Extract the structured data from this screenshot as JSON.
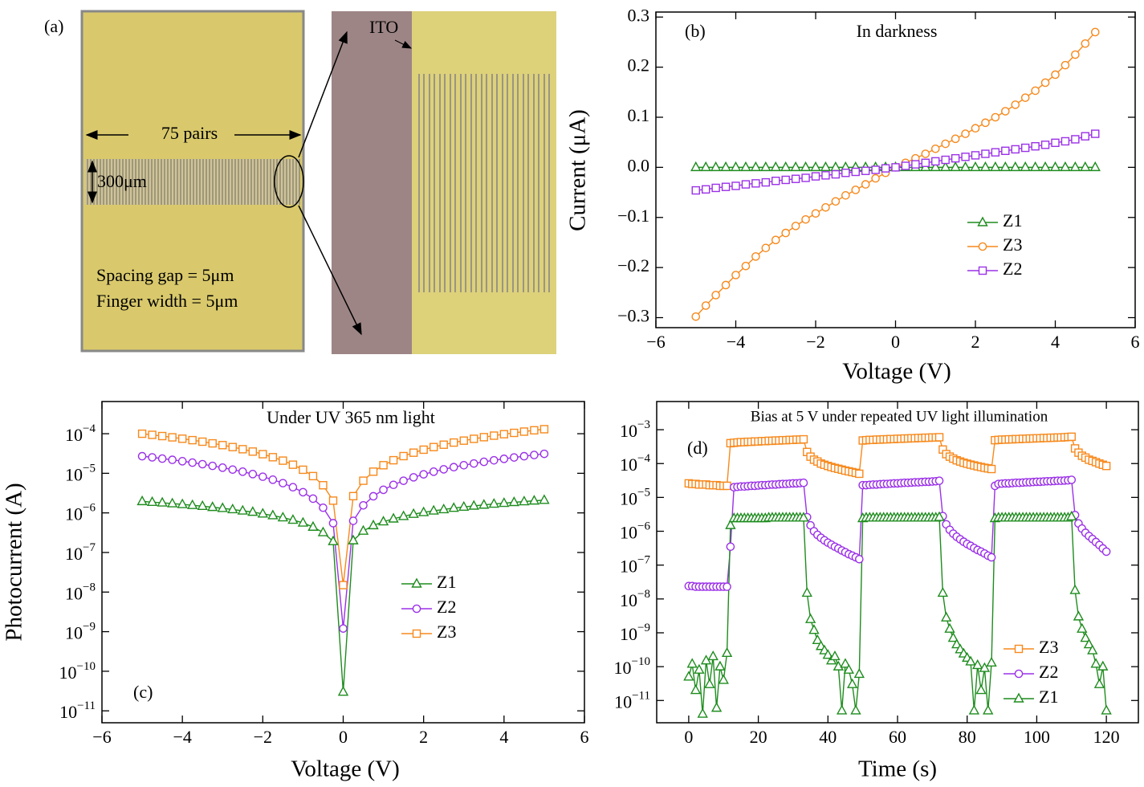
{
  "panel_a": {
    "label": "(a)",
    "pairs": "75 pairs",
    "width": "300μm",
    "gap": "Spacing gap = 5μm",
    "finger": "Finger width = 5μm",
    "ito": "ITO"
  },
  "chart_data": [
    {
      "type": "line",
      "panel_label": "(b)",
      "title": "In darkness",
      "xlabel": "Voltage (V)",
      "ylabel": "Current (μA)",
      "xlim": [
        -6,
        6
      ],
      "ylim": [
        -0.32,
        0.31
      ],
      "xticks": [
        {
          "value": -6,
          "label": "−6"
        },
        {
          "value": -4,
          "label": "−4"
        },
        {
          "value": -2,
          "label": "−2"
        },
        0,
        2,
        4,
        6
      ],
      "yticks": [
        {
          "value": -0.3,
          "label": "−0.3"
        },
        {
          "value": -0.2,
          "label": "−0.2"
        },
        {
          "value": -0.1,
          "label": "−0.1"
        },
        {
          "value": 0,
          "label": "0.0"
        },
        0.1,
        0.2,
        0.3
      ],
      "x": [
        -5,
        -4.75,
        -4.5,
        -4.25,
        -4,
        -3.75,
        -3.5,
        -3.25,
        -3,
        -2.75,
        -2.5,
        -2.25,
        -2,
        -1.75,
        -1.5,
        -1.25,
        -1,
        -0.75,
        -0.5,
        -0.25,
        0,
        0.25,
        0.5,
        0.75,
        1,
        1.25,
        1.5,
        1.75,
        2,
        2.25,
        2.5,
        2.75,
        3,
        3.25,
        3.5,
        3.75,
        4,
        4.25,
        4.5,
        4.75,
        5
      ],
      "series": [
        {
          "name": "Z1",
          "color": "#1e8c1e",
          "marker": "triangle",
          "values": [
            0,
            0,
            0,
            0,
            0,
            0,
            0,
            0,
            0,
            0,
            0,
            0,
            0,
            0,
            0,
            0,
            0,
            0,
            0,
            0,
            0,
            0,
            0,
            0,
            0,
            0,
            0,
            0,
            0,
            0,
            0,
            0,
            0,
            0,
            0,
            0,
            0,
            0,
            0,
            0,
            0
          ]
        },
        {
          "name": "Z3",
          "color": "#f7891c",
          "marker": "circle",
          "values": [
            -0.298,
            -0.276,
            -0.255,
            -0.235,
            -0.215,
            -0.197,
            -0.178,
            -0.161,
            -0.145,
            -0.131,
            -0.117,
            -0.104,
            -0.092,
            -0.08,
            -0.068,
            -0.056,
            -0.045,
            -0.034,
            -0.022,
            -0.011,
            0,
            0.009,
            0.018,
            0.027,
            0.037,
            0.047,
            0.057,
            0.067,
            0.078,
            0.089,
            0.1,
            0.112,
            0.125,
            0.139,
            0.153,
            0.169,
            0.185,
            0.204,
            0.225,
            0.247,
            0.27
          ]
        },
        {
          "name": "Z2",
          "color": "#9b30e8",
          "marker": "square",
          "values": [
            -0.046,
            -0.044,
            -0.041,
            -0.039,
            -0.037,
            -0.034,
            -0.032,
            -0.03,
            -0.027,
            -0.025,
            -0.023,
            -0.021,
            -0.018,
            -0.016,
            -0.014,
            -0.011,
            -0.009,
            -0.007,
            -0.005,
            -0.002,
            0,
            0.003,
            0.006,
            0.009,
            0.012,
            0.015,
            0.018,
            0.021,
            0.024,
            0.027,
            0.03,
            0.033,
            0.036,
            0.039,
            0.042,
            0.045,
            0.049,
            0.052,
            0.056,
            0.062,
            0.067
          ]
        }
      ]
    },
    {
      "type": "line",
      "log_y": true,
      "panel_label": "(c)",
      "title": "Under UV 365 nm light",
      "xlabel": "Voltage (V)",
      "ylabel": "Photocurrent (A)",
      "xlim": [
        -6,
        6
      ],
      "ylim": [
        5e-12,
        0.00065
      ],
      "xticks": [
        {
          "value": -6,
          "label": "−6"
        },
        {
          "value": -4,
          "label": "−4"
        },
        {
          "value": -2,
          "label": "−2"
        },
        0,
        2,
        4,
        6
      ],
      "yticks": [
        {
          "value": 1e-11,
          "label": "10−11"
        },
        {
          "value": 1e-10,
          "label": "10−10"
        },
        {
          "value": 1e-09,
          "label": "10−9"
        },
        {
          "value": 1e-08,
          "label": "10−8"
        },
        {
          "value": 1e-07,
          "label": "10−7"
        },
        {
          "value": 1e-06,
          "label": "10−6"
        },
        {
          "value": 1e-05,
          "label": "10−5"
        },
        {
          "value": 0.0001,
          "label": "10−4"
        }
      ],
      "x": [
        -5,
        -4.75,
        -4.5,
        -4.25,
        -4,
        -3.75,
        -3.5,
        -3.25,
        -3,
        -2.75,
        -2.5,
        -2.25,
        -2,
        -1.75,
        -1.5,
        -1.25,
        -1,
        -0.75,
        -0.5,
        -0.25,
        0,
        0.25,
        0.5,
        0.75,
        1,
        1.25,
        1.5,
        1.75,
        2,
        2.25,
        2.5,
        2.75,
        3,
        3.25,
        3.5,
        3.75,
        4,
        4.25,
        4.5,
        4.75,
        5
      ],
      "series": [
        {
          "name": "Z1",
          "color": "#1e8c1e",
          "marker": "triangle",
          "values": [
            1.95e-06,
            1.87e-06,
            1.8e-06,
            1.72e-06,
            1.64e-06,
            1.56e-06,
            1.48e-06,
            1.39e-06,
            1.31e-06,
            1.22e-06,
            1.13e-06,
            1.05e-06,
            9.5e-07,
            8.6e-07,
            7.6e-07,
            6.6e-07,
            5.6e-07,
            4.4e-07,
            3.2e-07,
            1.9e-07,
            3e-11,
            2e-07,
            3.5e-07,
            4.8e-07,
            6e-07,
            7.1e-07,
            8.2e-07,
            9.3e-07,
            1.03e-06,
            1.13e-06,
            1.22e-06,
            1.32e-06,
            1.41e-06,
            1.5e-06,
            1.59e-06,
            1.68e-06,
            1.76e-06,
            1.85e-06,
            1.93e-06,
            2.02e-06,
            2.1e-06
          ]
        },
        {
          "name": "Z2",
          "color": "#9b30e8",
          "marker": "circle",
          "values": [
            2.7e-05,
            2.53e-05,
            2.35e-05,
            2.19e-05,
            2.02e-05,
            1.86e-05,
            1.7e-05,
            1.54e-05,
            1.39e-05,
            1.24e-05,
            1.1e-05,
            9.56e-06,
            8.2e-06,
            6.9e-06,
            5.64e-06,
            4.45e-06,
            3.33e-06,
            2.29e-06,
            1.35e-06,
            5.5e-07,
            1.2e-09,
            6.3e-07,
            1.55e-06,
            2.63e-06,
            3.83e-06,
            5.11e-06,
            6.48e-06,
            7.92e-06,
            9.42e-06,
            1.1e-05,
            1.26e-05,
            1.43e-05,
            1.6e-05,
            1.77e-05,
            1.95e-05,
            2.13e-05,
            2.32e-05,
            2.51e-05,
            2.7e-05,
            2.9e-05,
            3.1e-05
          ]
        },
        {
          "name": "Z3",
          "color": "#f7891c",
          "marker": "square",
          "values": [
            0.0001,
            9.36e-05,
            8.72e-05,
            8.1e-05,
            7.48e-05,
            6.88e-05,
            6.29e-05,
            5.71e-05,
            5.15e-05,
            4.6e-05,
            4.06e-05,
            3.54e-05,
            3.04e-05,
            2.55e-05,
            2.09e-05,
            1.65e-05,
            1.23e-05,
            8.5e-06,
            5e-06,
            2.04e-06,
            1.5e-08,
            2.65e-06,
            6.5e-06,
            1.1e-05,
            1.6e-05,
            2.14e-05,
            2.72e-05,
            3.32e-05,
            3.95e-05,
            4.6e-05,
            5.28e-05,
            5.98e-05,
            6.69e-05,
            7.43e-05,
            8.18e-05,
            8.94e-05,
            9.72e-05,
            0.000105,
            0.000113,
            0.000122,
            0.00013
          ]
        }
      ]
    },
    {
      "type": "line",
      "log_y": true,
      "panel_label": "(d)",
      "title": "Bias at 5 V under repeated UV light illumination",
      "xlabel": "Time (s)",
      "xlim": [
        -9.2,
        129.2
      ],
      "ylim": [
        2.2e-12,
        0.0068
      ],
      "xticks": [
        0,
        20,
        40,
        60,
        80,
        100,
        120
      ],
      "yticks": [
        {
          "value": 1e-11,
          "label": "10−11"
        },
        {
          "value": 1e-10,
          "label": "10−10"
        },
        {
          "value": 1e-09,
          "label": "10−9"
        },
        {
          "value": 1e-08,
          "label": "10−8"
        },
        {
          "value": 1e-07,
          "label": "10−7"
        },
        {
          "value": 1e-06,
          "label": "10−6"
        },
        {
          "value": 1e-05,
          "label": "10−5"
        },
        {
          "value": 0.0001,
          "label": "10−4"
        },
        {
          "value": 0.001,
          "label": "10−3"
        }
      ],
      "x": [
        0,
        1,
        2,
        3,
        4,
        5,
        6,
        7,
        8,
        9,
        10,
        11,
        12,
        13,
        14,
        15,
        16,
        17,
        18,
        19,
        20,
        21,
        22,
        23,
        24,
        25,
        26,
        27,
        28,
        29,
        30,
        31,
        32,
        33,
        34,
        35,
        36,
        37,
        38,
        39,
        40,
        41,
        42,
        43,
        44,
        45,
        46,
        47,
        48,
        49,
        50,
        51,
        52,
        53,
        54,
        55,
        56,
        57,
        58,
        59,
        60,
        61,
        62,
        63,
        64,
        65,
        66,
        67,
        68,
        69,
        70,
        71,
        72,
        73,
        74,
        75,
        76,
        77,
        78,
        79,
        80,
        81,
        82,
        83,
        84,
        85,
        86,
        87,
        88,
        89,
        90,
        91,
        92,
        93,
        94,
        95,
        96,
        97,
        98,
        99,
        100,
        101,
        102,
        103,
        104,
        105,
        106,
        107,
        108,
        109,
        110,
        111,
        112,
        113,
        114,
        115,
        116,
        117,
        118,
        119,
        120
      ],
      "series": [
        {
          "name": "Z3",
          "color": "#f7891c",
          "marker": "square",
          "values": [
            2.6e-05,
            2.5e-05,
            2.5e-05,
            2.4e-05,
            2.4e-05,
            2.4e-05,
            2.3e-05,
            2.3e-05,
            2.3e-05,
            2.2e-05,
            2.2e-05,
            2.2e-05,
            0.0004,
            0.00041,
            0.00042,
            0.00043,
            0.00043,
            0.00044,
            0.00044,
            0.00045,
            0.00045,
            0.00046,
            0.00046,
            0.00047,
            0.00047,
            0.00048,
            0.00048,
            0.00049,
            0.00049,
            0.0005,
            0.0005,
            0.00051,
            0.00051,
            0.00052,
            0.00022,
            0.00016,
            0.00013,
            0.000115,
            0.0001,
            9.2e-05,
            8.5e-05,
            7.9e-05,
            7.4e-05,
            7e-05,
            6.6e-05,
            6.2e-05,
            5.9e-05,
            5.6e-05,
            5.3e-05,
            5e-05,
            0.00048,
            0.00049,
            0.0005,
            0.0005,
            0.00051,
            0.00051,
            0.00052,
            0.00052,
            0.00053,
            0.00053,
            0.00054,
            0.00054,
            0.00055,
            0.00055,
            0.00056,
            0.00056,
            0.00057,
            0.00057,
            0.00058,
            0.00058,
            0.00059,
            0.00059,
            0.0006,
            0.00026,
            0.00019,
            0.00016,
            0.00014,
            0.000125,
            0.000115,
            0.000106,
            9.9e-05,
            9.3e-05,
            8.8e-05,
            8.3e-05,
            7.9e-05,
            7.5e-05,
            7.2e-05,
            6.9e-05,
            0.00049,
            0.0005,
            0.00051,
            0.00051,
            0.00052,
            0.00052,
            0.00053,
            0.00053,
            0.00054,
            0.00054,
            0.00055,
            0.00055,
            0.00056,
            0.00056,
            0.00057,
            0.00057,
            0.00058,
            0.00058,
            0.00059,
            0.00059,
            0.0006,
            0.00061,
            0.00062,
            0.00028,
            0.00021,
            0.00017,
            0.00015,
            0.00013,
            0.00012,
            0.00011,
            0.0001,
            9.2e-05,
            8.5e-05
          ]
        },
        {
          "name": "Z2",
          "color": "#9b30e8",
          "marker": "circle",
          "values": [
            2.4e-08,
            2.4e-08,
            2.3e-08,
            2.3e-08,
            2.3e-08,
            2.3e-08,
            2.3e-08,
            2.3e-08,
            2.3e-08,
            2.3e-08,
            2.3e-08,
            2.3e-08,
            3.5e-07,
            2e-05,
            2.05e-05,
            2.1e-05,
            2.1e-05,
            2.15e-05,
            2.2e-05,
            2.2e-05,
            2.25e-05,
            2.3e-05,
            2.3e-05,
            2.35e-05,
            2.4e-05,
            2.4e-05,
            2.45e-05,
            2.5e-05,
            2.5e-05,
            2.55e-05,
            2.6e-05,
            2.6e-05,
            2.65e-05,
            2.7e-05,
            2.6e-06,
            1.5e-06,
            1e-06,
            7.8e-07,
            6.4e-07,
            5.4e-07,
            4.6e-07,
            4e-07,
            3.5e-07,
            3.1e-07,
            2.7e-07,
            2.4e-07,
            2.1e-07,
            1.9e-07,
            1.7e-07,
            1.5e-07,
            2.3e-05,
            2.3e-05,
            2.35e-05,
            2.4e-05,
            2.4e-05,
            2.45e-05,
            2.5e-05,
            2.5e-05,
            2.55e-05,
            2.6e-05,
            2.6e-05,
            2.65e-05,
            2.7e-05,
            2.7e-05,
            2.75e-05,
            2.8e-05,
            2.8e-05,
            2.85e-05,
            2.9e-05,
            2.9e-05,
            2.95e-05,
            3e-05,
            3.1e-05,
            2.8e-06,
            1.6e-06,
            1.1e-06,
            8.5e-07,
            6.9e-07,
            5.8e-07,
            4.9e-07,
            4.2e-07,
            3.7e-07,
            3.2e-07,
            2.8e-07,
            2.5e-07,
            2.2e-07,
            1.9e-07,
            1.7e-07,
            2.2e-05,
            2.5e-05,
            2.55e-05,
            2.6e-05,
            2.6e-05,
            2.65e-05,
            2.7e-05,
            2.7e-05,
            2.75e-05,
            2.8e-05,
            2.8e-05,
            2.85e-05,
            2.9e-05,
            2.9e-05,
            2.95e-05,
            3e-05,
            3e-05,
            3.05e-05,
            3.1e-05,
            3.1e-05,
            3.15e-05,
            3.2e-05,
            3.3e-05,
            3e-06,
            1.7e-06,
            1.2e-06,
            9e-07,
            7.2e-07,
            5.9e-07,
            4.8e-07,
            3.9e-07,
            3.1e-07,
            2.5e-07
          ]
        },
        {
          "name": "Z1",
          "color": "#1e8c1e",
          "marker": "triangle",
          "values": [
            5e-11,
            1.2e-10,
            2e-11,
            8e-11,
            4e-12,
            1.5e-10,
            3e-11,
            2e-10,
            6e-12,
            1e-10,
            4e-11,
            2.5e-10,
            1.5e-06,
            2.4e-06,
            2.4e-06,
            2.4e-06,
            2.4e-06,
            2.4e-06,
            2.4e-06,
            2.4e-06,
            2.4e-06,
            2.4e-06,
            2.4e-06,
            2.5e-06,
            2.5e-06,
            2.5e-06,
            2.5e-06,
            2.5e-06,
            2.5e-06,
            2.5e-06,
            2.5e-06,
            2.5e-06,
            2.5e-06,
            2.5e-06,
            1.5e-08,
            2.5e-09,
            1.2e-09,
            6e-10,
            4e-10,
            3e-10,
            2.2e-10,
            1.5e-10,
            2e-10,
            1e-10,
            5e-12,
            1.2e-10,
            8e-11,
            3e-11,
            5e-12,
            6e-11,
            2.4e-06,
            2.5e-06,
            2.5e-06,
            2.5e-06,
            2.5e-06,
            2.5e-06,
            2.5e-06,
            2.5e-06,
            2.5e-06,
            2.5e-06,
            2.5e-06,
            2.5e-06,
            2.5e-06,
            2.5e-06,
            2.5e-06,
            2.5e-06,
            2.5e-06,
            2.5e-06,
            2.5e-06,
            2.5e-06,
            2.5e-06,
            2.5e-06,
            2.6e-06,
            1.5e-08,
            2.8e-09,
            1.3e-09,
            7e-10,
            4.5e-10,
            3.2e-10,
            2.4e-10,
            1.8e-10,
            1.4e-10,
            5e-12,
            1.1e-10,
            2e-11,
            9e-11,
            5e-12,
            1.3e-10,
            2.4e-06,
            2.5e-06,
            2.5e-06,
            2.5e-06,
            2.5e-06,
            2.5e-06,
            2.5e-06,
            2.5e-06,
            2.5e-06,
            2.5e-06,
            2.5e-06,
            2.5e-06,
            2.5e-06,
            2.5e-06,
            2.5e-06,
            2.5e-06,
            2.5e-06,
            2.5e-06,
            2.5e-06,
            2.5e-06,
            2.5e-06,
            2.5e-06,
            2.7e-06,
            1.8e-08,
            3e-09,
            1.3e-09,
            7e-10,
            4.5e-10,
            3e-10,
            1.2e-10,
            3e-11,
            1e-10,
            5e-12
          ]
        }
      ]
    }
  ]
}
